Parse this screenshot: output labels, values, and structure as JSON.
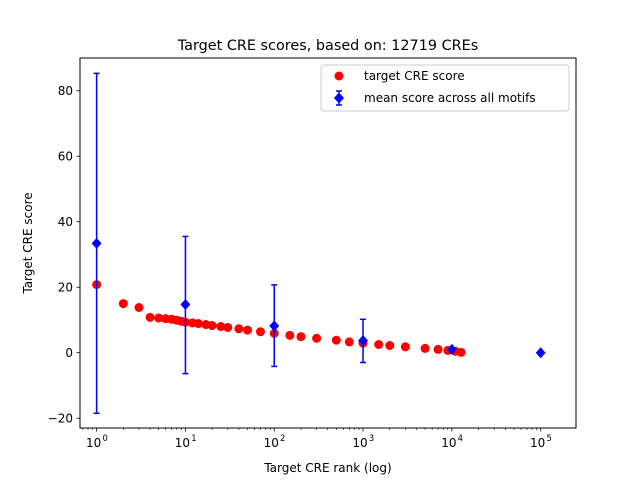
{
  "chart_data": {
    "type": "scatter",
    "title": "Target CRE scores, based on: 12719 CREs",
    "xlabel": "Target CRE rank (log)",
    "ylabel": "Target CRE score",
    "xscale": "log",
    "xlim": [
      0.65,
      250000
    ],
    "ylim": [
      -23,
      90
    ],
    "grid": false,
    "legend_position": "top-right",
    "x_ticks": [
      {
        "base": "10",
        "exp": "0",
        "value": 1
      },
      {
        "base": "10",
        "exp": "1",
        "value": 10
      },
      {
        "base": "10",
        "exp": "2",
        "value": 100
      },
      {
        "base": "10",
        "exp": "3",
        "value": 1000
      },
      {
        "base": "10",
        "exp": "4",
        "value": 10000
      },
      {
        "base": "10",
        "exp": "5",
        "value": 100000
      }
    ],
    "y_ticks": [
      {
        "label": "−20",
        "value": -20
      },
      {
        "label": "0",
        "value": 0
      },
      {
        "label": "20",
        "value": 20
      },
      {
        "label": "40",
        "value": 40
      },
      {
        "label": "60",
        "value": 60
      },
      {
        "label": "80",
        "value": 80
      }
    ],
    "series": [
      {
        "name": "target CRE score",
        "color": "#ff0000",
        "marker": "circle",
        "points": [
          {
            "x": 1,
            "y": 20.8
          },
          {
            "x": 2,
            "y": 15.0
          },
          {
            "x": 3,
            "y": 13.8
          },
          {
            "x": 4,
            "y": 10.8
          },
          {
            "x": 5,
            "y": 10.6
          },
          {
            "x": 6,
            "y": 10.4
          },
          {
            "x": 7,
            "y": 10.2
          },
          {
            "x": 8,
            "y": 9.9
          },
          {
            "x": 9,
            "y": 9.6
          },
          {
            "x": 10,
            "y": 9.3
          },
          {
            "x": 12,
            "y": 9.1
          },
          {
            "x": 14,
            "y": 8.9
          },
          {
            "x": 17,
            "y": 8.6
          },
          {
            "x": 20,
            "y": 8.3
          },
          {
            "x": 25,
            "y": 8.0
          },
          {
            "x": 30,
            "y": 7.7
          },
          {
            "x": 40,
            "y": 7.3
          },
          {
            "x": 50,
            "y": 6.9
          },
          {
            "x": 70,
            "y": 6.4
          },
          {
            "x": 100,
            "y": 5.9
          },
          {
            "x": 150,
            "y": 5.3
          },
          {
            "x": 200,
            "y": 4.9
          },
          {
            "x": 300,
            "y": 4.4
          },
          {
            "x": 500,
            "y": 3.8
          },
          {
            "x": 700,
            "y": 3.3
          },
          {
            "x": 1000,
            "y": 2.9
          },
          {
            "x": 1500,
            "y": 2.5
          },
          {
            "x": 2000,
            "y": 2.2
          },
          {
            "x": 3000,
            "y": 1.8
          },
          {
            "x": 5000,
            "y": 1.3
          },
          {
            "x": 7000,
            "y": 1.0
          },
          {
            "x": 9000,
            "y": 0.7
          },
          {
            "x": 11000,
            "y": 0.4
          },
          {
            "x": 12719,
            "y": 0.1
          }
        ]
      },
      {
        "name": "mean score across all motifs",
        "color": "#0000ff",
        "marker": "diamond",
        "points": [
          {
            "x": 1,
            "y": 33.4,
            "yerr_low": -18.5,
            "yerr_high": 85.3
          },
          {
            "x": 10,
            "y": 14.7,
            "yerr_low": -6.4,
            "yerr_high": 35.5
          },
          {
            "x": 100,
            "y": 8.2,
            "yerr_low": -4.2,
            "yerr_high": 20.7
          },
          {
            "x": 1000,
            "y": 3.7,
            "yerr_low": -3.0,
            "yerr_high": 10.2
          },
          {
            "x": 10000,
            "y": 1.0,
            "yerr_low": 0.6,
            "yerr_high": 1.5
          },
          {
            "x": 100000,
            "y": 0.0,
            "yerr_low": 0.0,
            "yerr_high": 0.0
          }
        ]
      }
    ]
  }
}
